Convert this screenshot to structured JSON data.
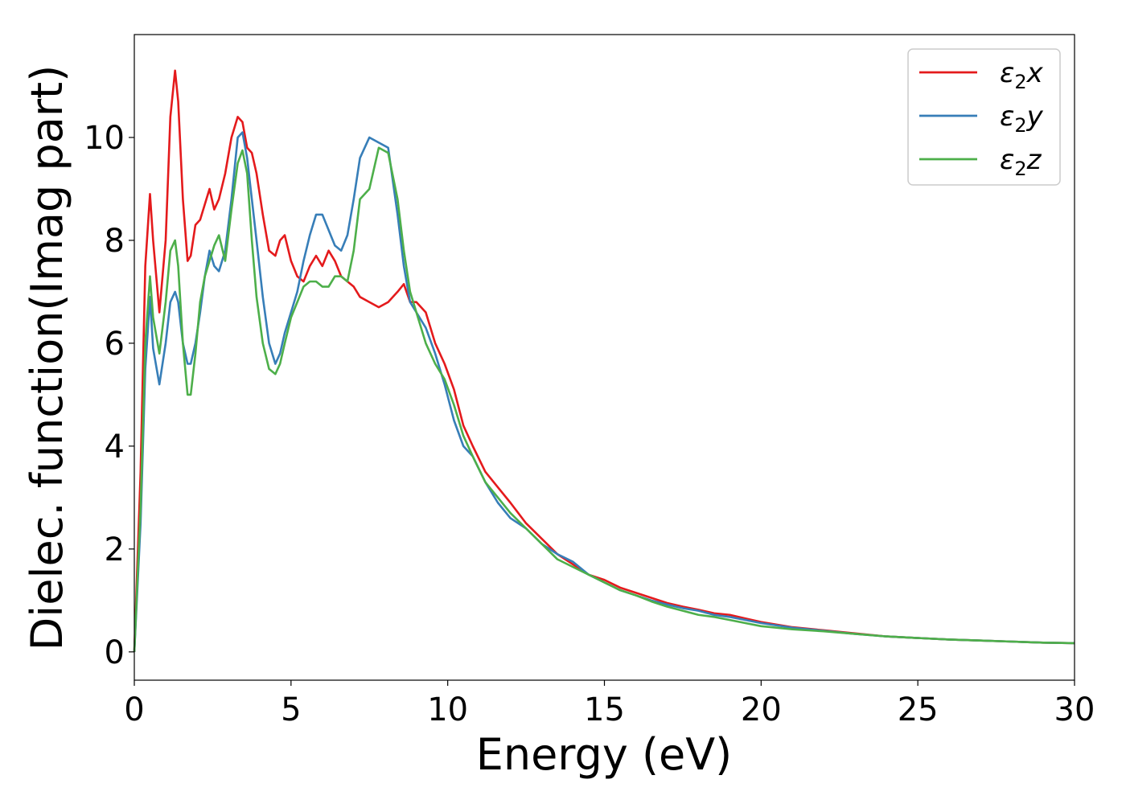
{
  "chart_data": {
    "type": "line",
    "title": "",
    "xlabel": "Energy (eV)",
    "ylabel": "Dielec. function(Imag part)",
    "xlim": [
      0,
      30
    ],
    "ylim": [
      -0.55,
      12.0
    ],
    "xticks": [
      0,
      5,
      10,
      15,
      20,
      25,
      30
    ],
    "yticks": [
      0,
      2,
      4,
      6,
      8,
      10
    ],
    "grid": false,
    "legend_position": "top-right",
    "series": [
      {
        "name": "ε2x",
        "symbol": "ε",
        "sub": "2",
        "axis": "x",
        "color": "#e41a1c",
        "x": [
          0,
          0.2,
          0.35,
          0.5,
          0.6,
          0.8,
          1.0,
          1.15,
          1.3,
          1.4,
          1.55,
          1.7,
          1.8,
          1.95,
          2.1,
          2.25,
          2.4,
          2.55,
          2.7,
          2.9,
          3.1,
          3.3,
          3.45,
          3.6,
          3.75,
          3.9,
          4.1,
          4.3,
          4.5,
          4.65,
          4.8,
          5.0,
          5.2,
          5.4,
          5.6,
          5.8,
          6.0,
          6.2,
          6.4,
          6.6,
          6.8,
          7.0,
          7.2,
          7.5,
          7.8,
          8.1,
          8.4,
          8.6,
          8.8,
          9.0,
          9.3,
          9.6,
          9.9,
          10.2,
          10.5,
          10.8,
          11.2,
          11.6,
          12.0,
          12.5,
          13.0,
          13.5,
          14.0,
          14.5,
          15.0,
          15.5,
          16.0,
          16.5,
          17.0,
          17.5,
          18.0,
          18.5,
          19.0,
          19.5,
          20.0,
          21.0,
          22.0,
          23.0,
          24.0,
          25.0,
          26.0,
          27.0,
          28.0,
          29.0,
          30.0
        ],
        "y": [
          0,
          3.5,
          7.5,
          8.9,
          8.0,
          6.6,
          8.0,
          10.4,
          11.3,
          10.7,
          8.8,
          7.6,
          7.7,
          8.3,
          8.4,
          8.7,
          9.0,
          8.6,
          8.8,
          9.3,
          10.0,
          10.4,
          10.3,
          9.8,
          9.7,
          9.3,
          8.5,
          7.8,
          7.7,
          8.0,
          8.1,
          7.6,
          7.3,
          7.2,
          7.5,
          7.7,
          7.5,
          7.8,
          7.6,
          7.3,
          7.2,
          7.1,
          6.9,
          6.8,
          6.7,
          6.8,
          7.0,
          7.15,
          6.8,
          6.8,
          6.6,
          6.0,
          5.6,
          5.1,
          4.4,
          4.0,
          3.5,
          3.2,
          2.9,
          2.5,
          2.2,
          1.9,
          1.7,
          1.5,
          1.4,
          1.25,
          1.15,
          1.05,
          0.95,
          0.88,
          0.82,
          0.75,
          0.72,
          0.65,
          0.58,
          0.48,
          0.42,
          0.36,
          0.3,
          0.27,
          0.24,
          0.22,
          0.2,
          0.18,
          0.17
        ]
      },
      {
        "name": "ε2y",
        "symbol": "ε",
        "sub": "2",
        "axis": "y",
        "color": "#377eb8",
        "x": [
          0,
          0.2,
          0.35,
          0.5,
          0.6,
          0.8,
          1.0,
          1.15,
          1.3,
          1.4,
          1.55,
          1.7,
          1.8,
          1.95,
          2.1,
          2.25,
          2.4,
          2.55,
          2.7,
          2.9,
          3.1,
          3.3,
          3.45,
          3.6,
          3.75,
          3.9,
          4.1,
          4.3,
          4.5,
          4.65,
          4.8,
          5.0,
          5.2,
          5.4,
          5.6,
          5.8,
          6.0,
          6.2,
          6.4,
          6.6,
          6.8,
          7.0,
          7.2,
          7.5,
          7.8,
          8.1,
          8.4,
          8.6,
          8.8,
          9.0,
          9.3,
          9.6,
          9.9,
          10.2,
          10.5,
          10.8,
          11.2,
          11.6,
          12.0,
          12.5,
          13.0,
          13.5,
          14.0,
          14.5,
          15.0,
          15.5,
          16.0,
          16.5,
          17.0,
          17.5,
          18.0,
          18.5,
          19.0,
          19.5,
          20.0,
          21.0,
          22.0,
          23.0,
          24.0,
          25.0,
          26.0,
          27.0,
          28.0,
          29.0,
          30.0
        ],
        "y": [
          0,
          2.5,
          5.5,
          6.9,
          5.9,
          5.2,
          6.0,
          6.8,
          7.0,
          6.8,
          6.0,
          5.6,
          5.6,
          6.0,
          6.6,
          7.3,
          7.8,
          7.5,
          7.4,
          7.8,
          8.8,
          10.0,
          10.1,
          9.6,
          8.8,
          8.0,
          6.9,
          6.0,
          5.6,
          5.8,
          6.2,
          6.6,
          7.0,
          7.6,
          8.1,
          8.5,
          8.5,
          8.2,
          7.9,
          7.8,
          8.1,
          8.8,
          9.6,
          10.0,
          9.9,
          9.8,
          8.5,
          7.5,
          6.8,
          6.6,
          6.3,
          5.8,
          5.2,
          4.5,
          4.0,
          3.8,
          3.3,
          2.9,
          2.6,
          2.4,
          2.1,
          1.9,
          1.75,
          1.5,
          1.35,
          1.2,
          1.1,
          1.0,
          0.92,
          0.85,
          0.8,
          0.72,
          0.68,
          0.62,
          0.56,
          0.47,
          0.41,
          0.35,
          0.3,
          0.27,
          0.24,
          0.22,
          0.2,
          0.18,
          0.17
        ]
      },
      {
        "name": "ε2z",
        "symbol": "ε",
        "sub": "2",
        "axis": "z",
        "color": "#4daf4a",
        "x": [
          0,
          0.2,
          0.35,
          0.5,
          0.6,
          0.8,
          1.0,
          1.15,
          1.3,
          1.4,
          1.55,
          1.7,
          1.8,
          1.95,
          2.1,
          2.25,
          2.4,
          2.55,
          2.7,
          2.9,
          3.1,
          3.3,
          3.45,
          3.6,
          3.75,
          3.9,
          4.1,
          4.3,
          4.5,
          4.65,
          4.8,
          5.0,
          5.2,
          5.4,
          5.6,
          5.8,
          6.0,
          6.2,
          6.4,
          6.6,
          6.8,
          7.0,
          7.2,
          7.5,
          7.8,
          8.1,
          8.4,
          8.6,
          8.8,
          9.0,
          9.3,
          9.6,
          9.9,
          10.2,
          10.5,
          10.8,
          11.2,
          11.6,
          12.0,
          12.5,
          13.0,
          13.5,
          14.0,
          14.5,
          15.0,
          15.5,
          16.0,
          16.5,
          17.0,
          17.5,
          18.0,
          18.5,
          19.0,
          19.5,
          20.0,
          21.0,
          22.0,
          23.0,
          24.0,
          25.0,
          26.0,
          27.0,
          28.0,
          29.0,
          30.0
        ],
        "y": [
          0,
          2.8,
          6.0,
          7.3,
          6.5,
          5.8,
          6.8,
          7.8,
          8.0,
          7.5,
          6.0,
          5.0,
          5.0,
          5.8,
          6.8,
          7.3,
          7.6,
          7.9,
          8.1,
          7.6,
          8.6,
          9.5,
          9.75,
          9.3,
          8.0,
          6.9,
          6.0,
          5.5,
          5.4,
          5.6,
          6.0,
          6.5,
          6.8,
          7.1,
          7.2,
          7.2,
          7.1,
          7.1,
          7.3,
          7.3,
          7.2,
          7.8,
          8.8,
          9.0,
          9.8,
          9.7,
          8.8,
          7.8,
          7.0,
          6.6,
          6.0,
          5.6,
          5.3,
          4.8,
          4.2,
          3.8,
          3.3,
          3.0,
          2.7,
          2.4,
          2.1,
          1.8,
          1.65,
          1.5,
          1.35,
          1.2,
          1.1,
          0.98,
          0.88,
          0.8,
          0.72,
          0.68,
          0.62,
          0.56,
          0.5,
          0.44,
          0.4,
          0.35,
          0.3,
          0.27,
          0.24,
          0.22,
          0.2,
          0.18,
          0.17
        ]
      }
    ]
  }
}
